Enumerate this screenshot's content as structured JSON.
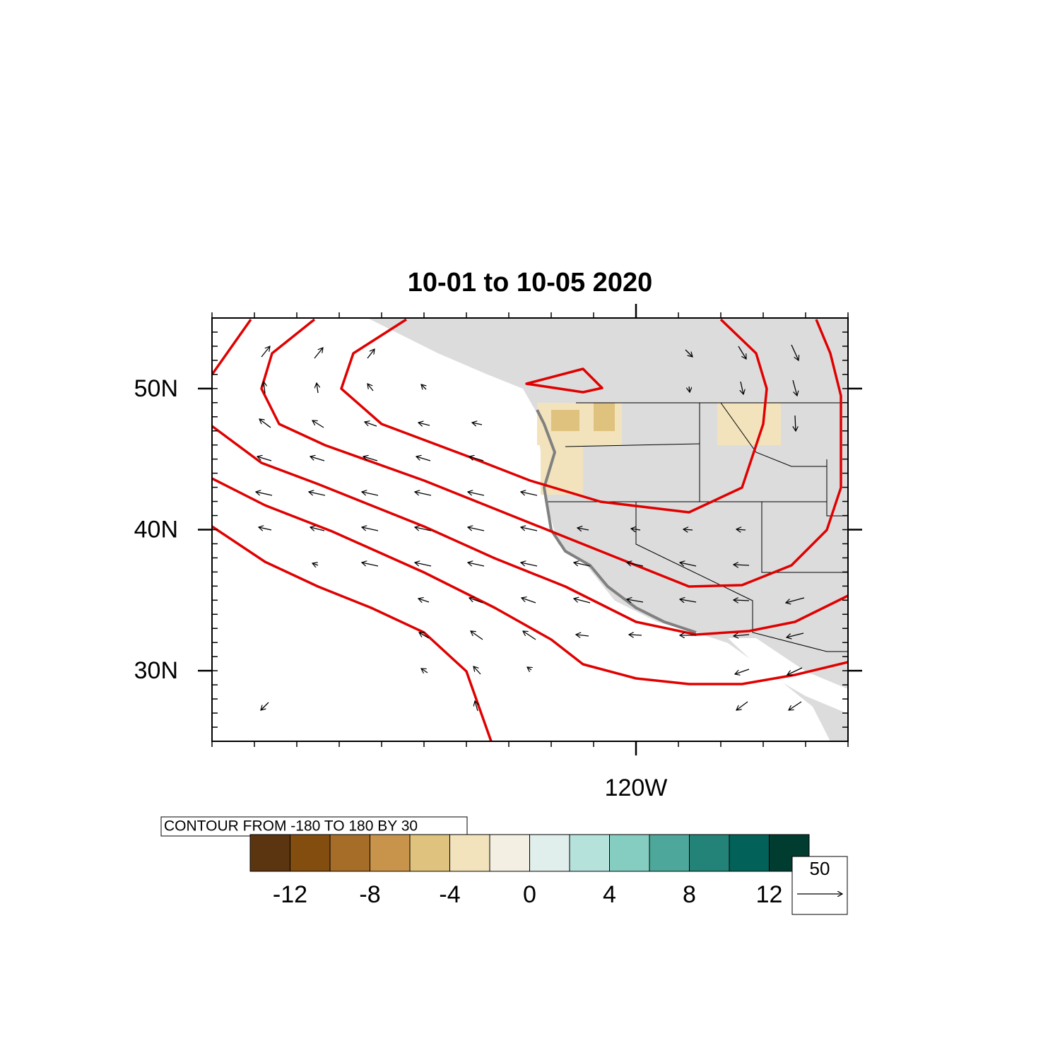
{
  "title": "10-01 to 10-05 2020",
  "map": {
    "lon_range": [
      -150,
      -105
    ],
    "lat_range": [
      25,
      55
    ],
    "lat_ticks": [
      {
        "value": 50,
        "label": "50N"
      },
      {
        "value": 40,
        "label": "40N"
      },
      {
        "value": 30,
        "label": "30N"
      }
    ],
    "lon_ticks": [
      {
        "value": -120,
        "label": "120W"
      }
    ]
  },
  "contour_info": "CONTOUR FROM -180 TO 180 BY 30",
  "colorbar": {
    "colors": [
      "#5b3510",
      "#834d10",
      "#a66d28",
      "#c8934a",
      "#dfc27d",
      "#f2e3bd",
      "#f3efe3",
      "#e0eeec",
      "#b6e2dc",
      "#86cdc1",
      "#4da89b",
      "#238378",
      "#02625a",
      "#003c30"
    ],
    "labels": [
      -12,
      -8,
      -4,
      0,
      4,
      8,
      12
    ]
  },
  "reference_vector": {
    "label": 50
  }
}
